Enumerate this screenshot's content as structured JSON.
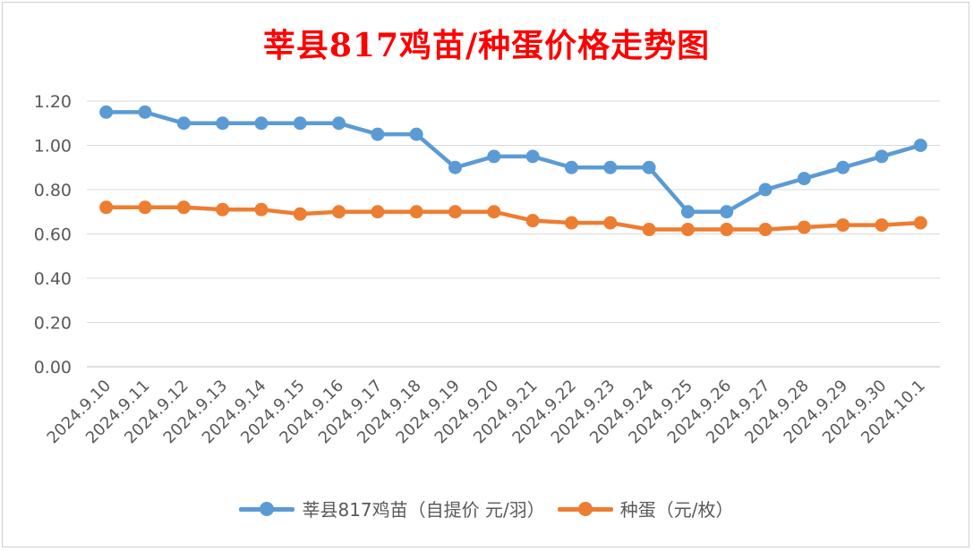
{
  "chart_data": {
    "type": "line",
    "title": "莘县817鸡苗/种蛋价格走势图",
    "categories": [
      "2024.9.10",
      "2024.9.11",
      "2024.9.12",
      "2024.9.13",
      "2024.9.14",
      "2024.9.15",
      "2024.9.16",
      "2024.9.17",
      "2024.9.18",
      "2024.9.19",
      "2024.9.20",
      "2024.9.21",
      "2024.9.22",
      "2024.9.23",
      "2024.9.24",
      "2024.9.25",
      "2024.9.26",
      "2024.9.27",
      "2024.9.28",
      "2024.9.29",
      "2024.9.30",
      "2024.10.1"
    ],
    "series": [
      {
        "name": "莘县817鸡苗（自提价 元/羽）",
        "color": "#5b9bd5",
        "values": [
          1.15,
          1.15,
          1.1,
          1.1,
          1.1,
          1.1,
          1.1,
          1.05,
          1.05,
          0.9,
          0.95,
          0.95,
          0.9,
          0.9,
          0.9,
          0.7,
          0.7,
          0.8,
          0.85,
          0.9,
          0.95,
          1.0
        ]
      },
      {
        "name": "种蛋（元/枚）",
        "color": "#ed7d31",
        "values": [
          0.72,
          0.72,
          0.72,
          0.71,
          0.71,
          0.69,
          0.7,
          0.7,
          0.7,
          0.7,
          0.7,
          0.66,
          0.65,
          0.65,
          0.62,
          0.62,
          0.62,
          0.62,
          0.63,
          0.64,
          0.64,
          0.65
        ]
      }
    ],
    "ylim": [
      0,
      1.2
    ],
    "yticks": [
      "0.00",
      "0.20",
      "0.40",
      "0.60",
      "0.80",
      "1.00",
      "1.20"
    ],
    "grid": true,
    "legend": "bottom"
  }
}
